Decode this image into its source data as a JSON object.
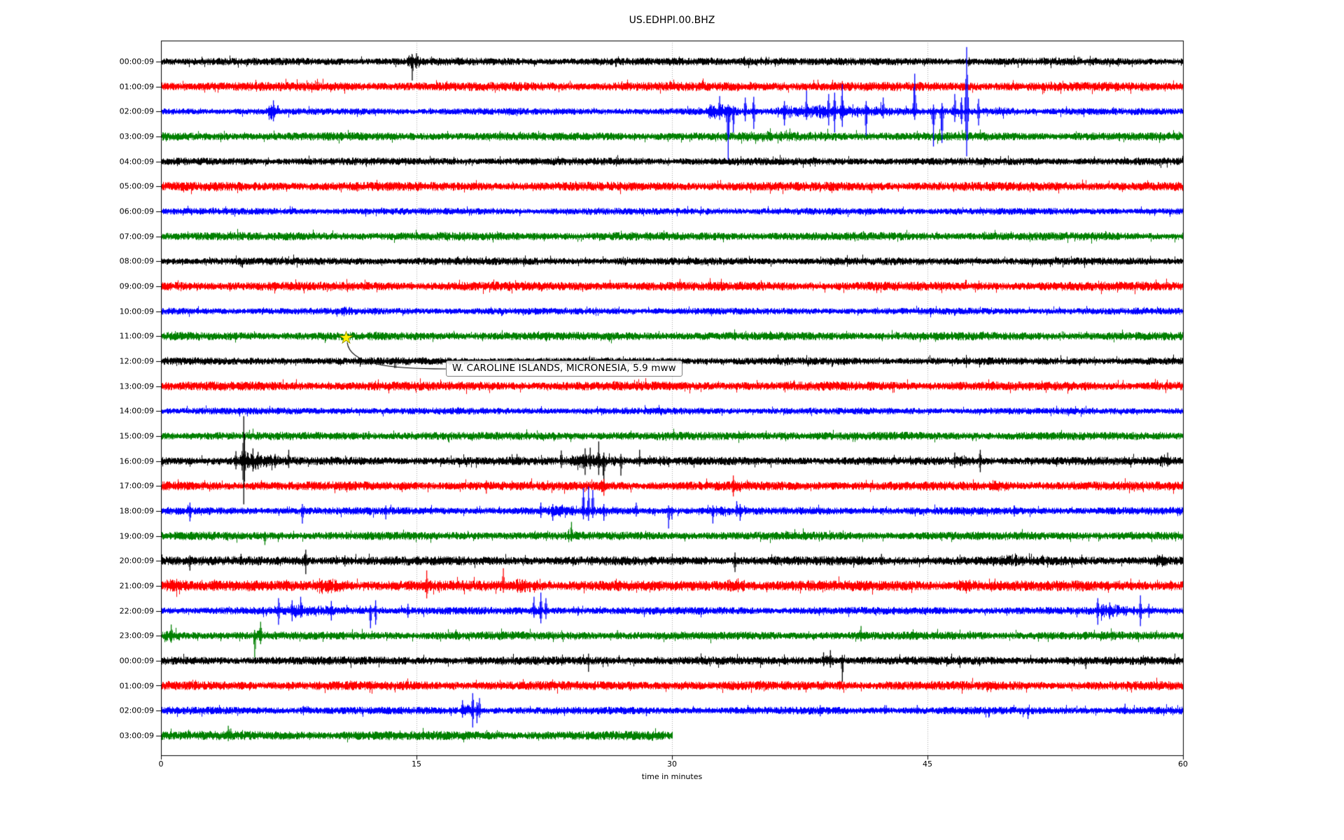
{
  "title": "US.EDHPI.00.BHZ",
  "axes": {
    "xlabel": "time in minutes",
    "x_ticks": [
      "0",
      "15",
      "30",
      "45",
      "60"
    ],
    "x_range": [
      0,
      60
    ]
  },
  "annotation": {
    "text": "W. CAROLINE ISLANDS, MICRONESIA, 5.9 mww",
    "star_minute": 10.85,
    "star_row_index": 11
  },
  "colors": {
    "trace_cycle": [
      "#000000",
      "#ff0000",
      "#0000ff",
      "#008000"
    ],
    "star": "#ffee00",
    "star_edge": "#8a8a00",
    "grid": "#ababab",
    "annotation_border": "#7f7f7f",
    "axis": "#000000"
  },
  "chart_data": {
    "type": "seismogram",
    "station": "US.EDHPI.00.BHZ",
    "minutes_per_line": 60,
    "rows": [
      {
        "label": "00:00:09",
        "color": "#000000",
        "base": 5,
        "end": 60,
        "bursts": [
          [
            14.3,
            15.8,
            10
          ],
          [
            33,
            41,
            6
          ]
        ],
        "spikes": [
          [
            14.75,
            10,
            27
          ],
          [
            15.0,
            12,
            10
          ]
        ]
      },
      {
        "label": "01:00:09",
        "color": "#ff0000",
        "base": 6,
        "end": 60,
        "bursts": [
          [
            39.5,
            41,
            6.5
          ]
        ],
        "spikes": [
          [
            34.6,
            7,
            5
          ],
          [
            40.0,
            8,
            6
          ]
        ]
      },
      {
        "label": "02:00:09",
        "color": "#0000ff",
        "base": 4.5,
        "end": 60,
        "bursts": [
          [
            6.2,
            7.2,
            13
          ],
          [
            31.8,
            34.5,
            11
          ],
          [
            34.5,
            48.5,
            9
          ],
          [
            48.5,
            52,
            6.5
          ]
        ],
        "spikes": [
          [
            6.6,
            16,
            14
          ],
          [
            32.8,
            22,
            12
          ],
          [
            33.3,
            10,
            69
          ],
          [
            33.6,
            8,
            30
          ],
          [
            34.3,
            20,
            14
          ],
          [
            34.8,
            21,
            25
          ],
          [
            36.6,
            15,
            20
          ],
          [
            37.9,
            30,
            12
          ],
          [
            39.2,
            25,
            20
          ],
          [
            39.55,
            27,
            30
          ],
          [
            40.0,
            39,
            22
          ],
          [
            41.4,
            15,
            35
          ],
          [
            42.4,
            20,
            10
          ],
          [
            44.25,
            54,
            12
          ],
          [
            45.35,
            10,
            50
          ],
          [
            45.85,
            12,
            45
          ],
          [
            46.6,
            25,
            15
          ],
          [
            47.0,
            20,
            18
          ],
          [
            47.3,
            92,
            64
          ],
          [
            48.0,
            18,
            20
          ]
        ]
      },
      {
        "label": "03:00:09",
        "color": "#008000",
        "base": 5.5,
        "end": 60,
        "bursts": [
          [
            32,
            48,
            7
          ]
        ],
        "spikes": []
      },
      {
        "label": "04:00:09",
        "color": "#000000",
        "base": 5,
        "end": 60,
        "bursts": [],
        "spikes": []
      },
      {
        "label": "05:00:09",
        "color": "#ff0000",
        "base": 6,
        "end": 60,
        "bursts": [],
        "spikes": []
      },
      {
        "label": "06:00:09",
        "color": "#0000ff",
        "base": 4.5,
        "end": 60,
        "bursts": [],
        "spikes": []
      },
      {
        "label": "07:00:09",
        "color": "#008000",
        "base": 5.5,
        "end": 60,
        "bursts": [
          [
            40.5,
            41.3,
            7
          ]
        ],
        "spikes": []
      },
      {
        "label": "08:00:09",
        "color": "#000000",
        "base": 5,
        "end": 60,
        "bursts": [],
        "spikes": []
      },
      {
        "label": "09:00:09",
        "color": "#ff0000",
        "base": 6,
        "end": 60,
        "bursts": [],
        "spikes": [
          [
            14.7,
            6,
            5
          ]
        ]
      },
      {
        "label": "10:00:09",
        "color": "#0000ff",
        "base": 4.5,
        "end": 60,
        "bursts": [
          [
            10.2,
            12.7,
            6
          ]
        ],
        "spikes": []
      },
      {
        "label": "11:00:09",
        "color": "#008000",
        "base": 5.5,
        "end": 60,
        "bursts": [],
        "spikes": []
      },
      {
        "label": "12:00:09",
        "color": "#000000",
        "base": 5,
        "end": 60,
        "bursts": [],
        "spikes": []
      },
      {
        "label": "13:00:09",
        "color": "#ff0000",
        "base": 6,
        "end": 60,
        "bursts": [],
        "spikes": []
      },
      {
        "label": "14:00:09",
        "color": "#0000ff",
        "base": 4.5,
        "end": 60,
        "bursts": [],
        "spikes": []
      },
      {
        "label": "15:00:09",
        "color": "#008000",
        "base": 5.5,
        "end": 60,
        "bursts": [
          [
            36,
            38.5,
            6.5
          ]
        ],
        "spikes": [
          [
            12.2,
            7,
            5
          ]
        ]
      },
      {
        "label": "16:00:09",
        "color": "#000000",
        "base": 5.5,
        "end": 60,
        "bursts": [
          [
            4.2,
            8.2,
            12
          ],
          [
            23.3,
            28.6,
            10
          ],
          [
            29,
            30.6,
            7
          ],
          [
            46.4,
            48.6,
            8
          ],
          [
            58.4,
            59.9,
            9
          ]
        ],
        "spikes": [
          [
            4.4,
            14,
            12
          ],
          [
            4.86,
            64,
            62
          ],
          [
            5.4,
            18,
            15
          ],
          [
            5.7,
            13,
            12
          ],
          [
            6.7,
            10,
            10
          ],
          [
            7.5,
            16,
            10
          ],
          [
            20.9,
            10,
            5
          ],
          [
            23.5,
            15,
            10
          ],
          [
            24.9,
            18,
            20
          ],
          [
            25.2,
            19,
            12
          ],
          [
            25.7,
            28,
            20
          ],
          [
            26.0,
            12,
            40
          ],
          [
            27.0,
            10,
            21
          ],
          [
            28.1,
            16,
            8
          ],
          [
            46.6,
            12,
            10
          ],
          [
            48.1,
            16,
            16
          ],
          [
            59.1,
            12,
            8
          ]
        ]
      },
      {
        "label": "17:00:09",
        "color": "#ff0000",
        "base": 6,
        "end": 60,
        "bursts": [
          [
            25.6,
            26.5,
            8
          ],
          [
            33.3,
            35.3,
            8
          ],
          [
            48.3,
            50.8,
            8
          ],
          [
            50.8,
            52.8,
            6.5
          ]
        ],
        "spikes": [
          [
            19.1,
            8,
            11
          ],
          [
            26.0,
            10,
            14
          ],
          [
            33.6,
            15,
            15
          ]
        ]
      },
      {
        "label": "18:00:09",
        "color": "#0000ff",
        "base": 5,
        "end": 60,
        "bursts": [
          [
            21.9,
            28.4,
            8
          ],
          [
            32.2,
            34.3,
            7
          ]
        ],
        "spikes": [
          [
            1.7,
            12,
            15
          ],
          [
            8.3,
            10,
            18
          ],
          [
            13.2,
            8,
            12
          ],
          [
            22.3,
            12,
            10
          ],
          [
            23.0,
            10,
            14
          ],
          [
            24.8,
            33,
            12
          ],
          [
            25.1,
            35,
            14
          ],
          [
            25.35,
            30,
            10
          ],
          [
            26.0,
            10,
            14
          ],
          [
            27.9,
            12,
            8
          ],
          [
            29.8,
            8,
            25
          ],
          [
            30.0,
            6,
            12
          ],
          [
            32.4,
            8,
            18
          ],
          [
            33.8,
            14,
            8
          ],
          [
            34.0,
            10,
            14
          ],
          [
            50.1,
            8,
            8
          ]
        ]
      },
      {
        "label": "19:00:09",
        "color": "#008000",
        "base": 5.5,
        "end": 60,
        "bursts": [
          [
            23.7,
            24.7,
            9
          ]
        ],
        "spikes": [
          [
            6.1,
            6,
            13
          ],
          [
            24.1,
            20,
            8
          ],
          [
            36.7,
            7,
            5
          ],
          [
            57.0,
            6,
            5
          ]
        ]
      },
      {
        "label": "20:00:09",
        "color": "#000000",
        "base": 6,
        "end": 60,
        "bursts": [
          [
            8.2,
            8.9,
            9
          ],
          [
            49.0,
            51.8,
            9
          ],
          [
            58.0,
            60,
            10
          ]
        ],
        "spikes": [
          [
            1.7,
            8,
            14
          ],
          [
            4.7,
            10,
            6
          ],
          [
            8.5,
            16,
            19
          ],
          [
            10.8,
            8,
            8
          ],
          [
            33.7,
            12,
            16
          ],
          [
            42.3,
            10,
            6
          ]
        ]
      },
      {
        "label": "21:00:09",
        "color": "#ff0000",
        "base": 7,
        "end": 60,
        "bursts": [
          [
            0,
            2.4,
            10
          ],
          [
            8.7,
            12.3,
            11
          ],
          [
            15.3,
            16.1,
            9
          ],
          [
            17.2,
            17.8,
            8
          ],
          [
            20.5,
            23.2,
            11
          ],
          [
            32.8,
            35.7,
            10
          ],
          [
            46.4,
            49.1,
            10
          ],
          [
            59.0,
            60,
            8
          ]
        ],
        "spikes": [
          [
            15.6,
            22,
            18
          ],
          [
            20.1,
            25,
            10
          ]
        ]
      },
      {
        "label": "22:00:09",
        "color": "#0000ff",
        "base": 5,
        "end": 60,
        "bursts": [
          [
            6.6,
            13.1,
            8
          ],
          [
            21.6,
            23.0,
            8
          ],
          [
            54.6,
            58.4,
            9
          ]
        ],
        "spikes": [
          [
            6.9,
            18,
            20
          ],
          [
            7.7,
            15,
            15
          ],
          [
            8.2,
            20,
            10
          ],
          [
            10.0,
            14,
            14
          ],
          [
            12.3,
            8,
            25
          ],
          [
            12.6,
            15,
            20
          ],
          [
            14.5,
            10,
            10
          ],
          [
            21.9,
            20,
            10
          ],
          [
            22.3,
            26,
            18
          ],
          [
            22.6,
            18,
            12
          ],
          [
            24.5,
            6,
            6
          ],
          [
            55.0,
            18,
            20
          ],
          [
            55.7,
            12,
            12
          ],
          [
            57.5,
            22,
            22
          ],
          [
            58.0,
            10,
            10
          ]
        ]
      },
      {
        "label": "23:00:09",
        "color": "#008000",
        "base": 5.5,
        "end": 60,
        "bursts": [
          [
            0,
            1.6,
            10
          ],
          [
            5.3,
            6.3,
            9
          ]
        ],
        "spikes": [
          [
            0.6,
            16,
            10
          ],
          [
            5.5,
            8,
            31
          ],
          [
            5.85,
            20,
            12
          ],
          [
            26.8,
            8,
            5
          ],
          [
            41.1,
            14,
            8
          ],
          [
            47.5,
            7,
            5
          ]
        ]
      },
      {
        "label": "00:00:09",
        "color": "#000000",
        "base": 5.5,
        "end": 60,
        "bursts": [
          [
            38.6,
            40.2,
            8
          ]
        ],
        "spikes": [
          [
            18.8,
            6,
            6
          ],
          [
            25.1,
            10,
            16
          ],
          [
            38.9,
            12,
            8
          ],
          [
            39.3,
            15,
            10
          ],
          [
            40.0,
            8,
            30
          ],
          [
            54.3,
            5,
            12
          ]
        ]
      },
      {
        "label": "01:00:09",
        "color": "#ff0000",
        "base": 6,
        "end": 60,
        "bursts": [
          [
            39.5,
            40.8,
            7
          ]
        ],
        "spikes": []
      },
      {
        "label": "02:00:09",
        "color": "#0000ff",
        "base": 5,
        "end": 60,
        "bursts": [
          [
            8.1,
            9.3,
            6.5
          ],
          [
            17.5,
            19.0,
            8
          ]
        ],
        "spikes": [
          [
            17.7,
            15,
            10
          ],
          [
            18.3,
            25,
            24
          ],
          [
            18.55,
            12,
            18
          ],
          [
            18.7,
            18,
            10
          ],
          [
            28.5,
            5,
            8
          ],
          [
            38.7,
            8,
            8
          ],
          [
            42.5,
            8,
            5
          ],
          [
            44.4,
            8,
            5
          ],
          [
            48.6,
            5,
            10
          ],
          [
            50.9,
            5,
            12
          ],
          [
            56.6,
            10,
            5
          ]
        ]
      },
      {
        "label": "03:00:09",
        "color": "#008000",
        "base": 6,
        "end": 30,
        "bursts": [
          [
            3.6,
            4.4,
            8
          ]
        ],
        "spikes": [
          [
            3.95,
            14,
            8
          ],
          [
            4.1,
            10,
            6
          ]
        ]
      }
    ]
  }
}
